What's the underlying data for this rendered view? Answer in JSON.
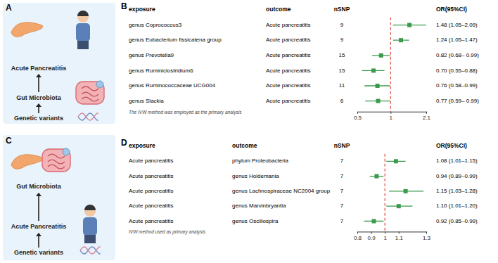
{
  "chart_data": [
    {
      "type": "forest",
      "panel": "B",
      "columns": [
        "exposure",
        "outcome",
        "nSNP",
        "OR(95%CI)"
      ],
      "categories": [
        "genus Coprococcus3",
        "genus Eubacterium fissicatena group",
        "genus Prevotella9",
        "genus Ruminiclostridium6",
        "genus Ruminococcaceae UCG004",
        "genus Slackia"
      ],
      "outcomes": [
        "Acute pancreatitis",
        "Acute pancreatitis",
        "Acute pancreatitis",
        "Acute pancreatitis",
        "Acute pancreatitis",
        "Acute pancreatitis"
      ],
      "nsnp": [
        9,
        9,
        15,
        15,
        11,
        6
      ],
      "values": [
        1.48,
        1.24,
        0.82,
        0.7,
        0.76,
        0.77
      ],
      "ci_low": [
        1.05,
        1.05,
        0.68,
        0.55,
        0.58,
        0.59
      ],
      "ci_high": [
        2.09,
        1.47,
        0.99,
        0.88,
        0.99,
        0.99
      ],
      "value_labels": [
        "1.48 (1.05–2.09)",
        "1.24 (1.05–1.47)",
        "0.82 (0.68– 0.99)",
        "0.70 (0.55–0.88)",
        "0.76 (0.58–0.99)",
        "0.77 (0.59– 0.99)"
      ],
      "note": "The IVW method was employed as the primary analysis",
      "xlim": [
        0.5,
        2.1
      ],
      "xticks": [
        0.5,
        1,
        2.1
      ],
      "log": "x",
      "reference_line": 1,
      "color": "#3c9a4c"
    },
    {
      "type": "forest",
      "panel": "D",
      "columns": [
        "exposure",
        "outcome",
        "nSNP",
        "OR(95%CI)"
      ],
      "categories": [
        "Acute pancreatitis",
        "Acute pancreatitis",
        "Acute pancreatitis",
        "Acute pancreatitis",
        "Acute pancreatitis"
      ],
      "outcomes": [
        "phylum Proteobacteria",
        "genus Holdemania",
        "genus Lachnospiraceae NC2004 group",
        "genus Marvinbryantia",
        "genus Oscillospira"
      ],
      "nsnp": [
        7,
        7,
        7,
        7,
        7
      ],
      "values": [
        1.08,
        0.94,
        1.15,
        1.1,
        0.92
      ],
      "ci_low": [
        1.01,
        0.89,
        1.03,
        1.01,
        0.85
      ],
      "ci_high": [
        1.15,
        0.99,
        1.28,
        1.2,
        0.99
      ],
      "value_labels": [
        "1.08 (1.01–1.15)",
        "0.94 (0.89–0.99)",
        "1.15 (1.03–1.28)",
        "1.10 (1.01–1.20)",
        "0.92 (0.85–0.99)"
      ],
      "note": "IVW method used as primary analysis",
      "xlim": [
        0.8,
        1.3
      ],
      "xticks": [
        0.8,
        0.9,
        1,
        1.1,
        1.3
      ],
      "reference_line": 1,
      "color": "#3c9a4c"
    }
  ],
  "diagrams": [
    {
      "panel": "A",
      "nodes": [
        "Acute Pancreatitis",
        "Gut Microbiota",
        "Genetic variants"
      ]
    },
    {
      "panel": "C",
      "nodes": [
        "Gut Microbiota",
        "Acute Pancreatitis",
        "Genetic variants"
      ]
    }
  ]
}
